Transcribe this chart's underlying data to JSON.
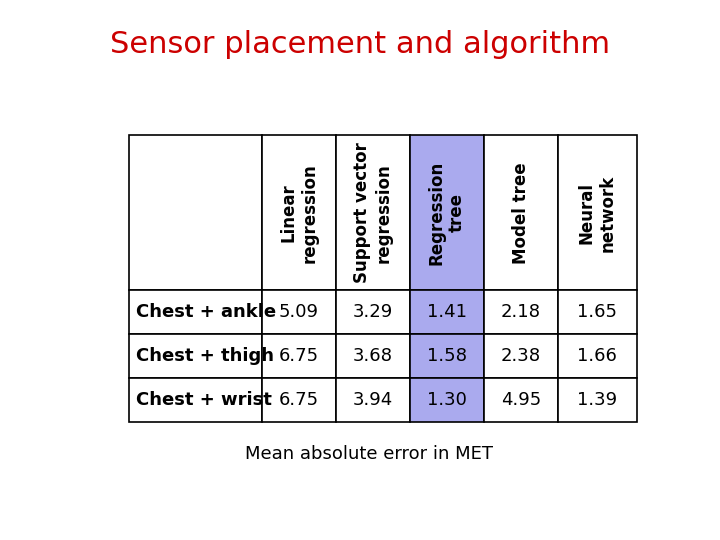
{
  "title": "Sensor placement and algorithm",
  "title_color": "#cc0000",
  "title_fontsize": 22,
  "col_headers": [
    "Linear\nregression",
    "Support vector\nregression",
    "Regression\ntree",
    "Model tree",
    "Neural\nnetwork"
  ],
  "row_headers": [
    "Chest + ankle",
    "Chest + thigh",
    "Chest + wrist"
  ],
  "table_data": [
    [
      "5.09",
      "3.29",
      "1.41",
      "2.18",
      "1.65"
    ],
    [
      "6.75",
      "3.68",
      "1.58",
      "2.38",
      "1.66"
    ],
    [
      "6.75",
      "3.94",
      "1.30",
      "4.95",
      "1.39"
    ]
  ],
  "highlight_col": 2,
  "highlight_color": "#aaaaee",
  "footer": "Mean absolute error in MET",
  "footer_fontsize": 13,
  "background_color": "#ffffff",
  "border_color": "#000000",
  "header_bg": "#ffffff",
  "cell_bg": "#ffffff",
  "row_header_fontweight": "bold",
  "data_fontsize": 13,
  "header_fontsize": 12,
  "row_header_fontsize": 13
}
